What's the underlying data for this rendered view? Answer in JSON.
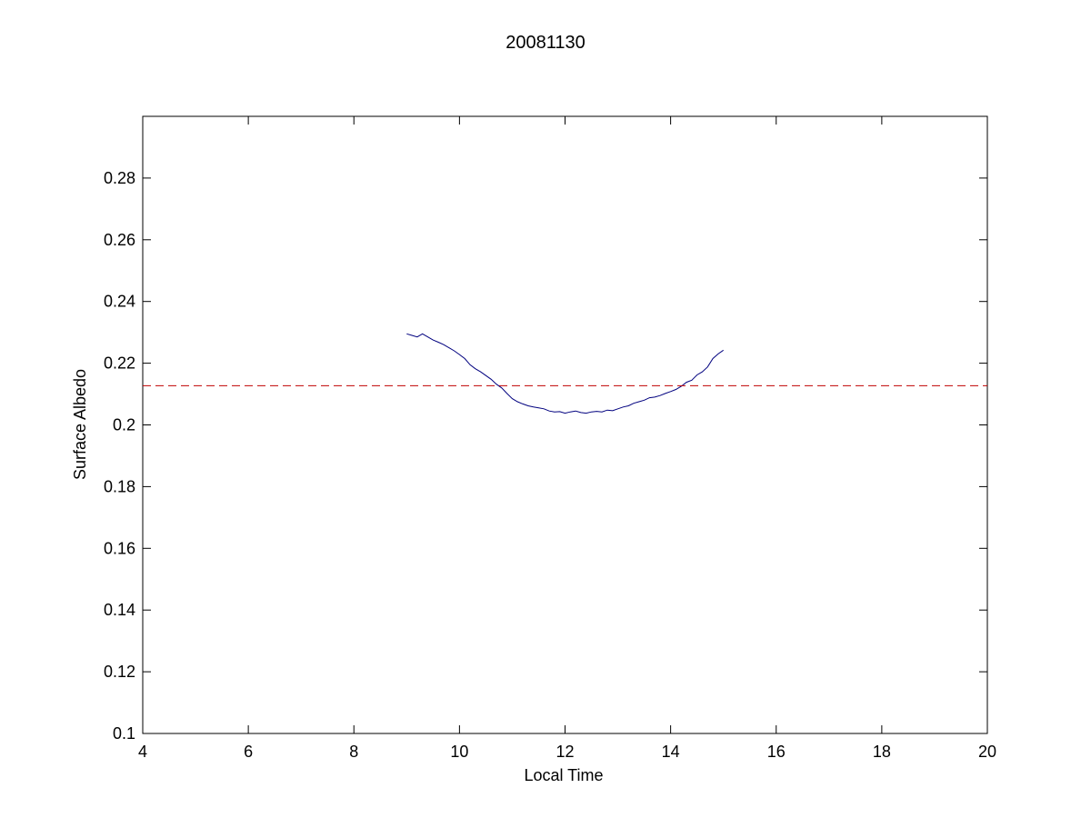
{
  "chart_data": {
    "type": "line",
    "title": "20081130",
    "xlabel": "Local Time",
    "ylabel": "Surface Albedo",
    "xlim": [
      4,
      20
    ],
    "ylim": [
      0.1,
      0.3
    ],
    "xticks": [
      4,
      6,
      8,
      10,
      12,
      14,
      16,
      18,
      20
    ],
    "yticks": [
      0.1,
      0.12,
      0.14,
      0.16,
      0.18,
      0.2,
      0.22,
      0.24,
      0.26,
      0.28
    ],
    "ytick_labels": [
      "0.1",
      "0.12",
      "0.14",
      "0.16",
      "0.18",
      "0.2",
      "0.22",
      "0.24",
      "0.26",
      "0.28"
    ],
    "grid": false,
    "series": [
      {
        "color": "#00007f",
        "style": "solid",
        "x": [
          9.0,
          9.1,
          9.2,
          9.3,
          9.4,
          9.5,
          9.6,
          9.7,
          9.8,
          9.9,
          10.0,
          10.1,
          10.2,
          10.3,
          10.4,
          10.5,
          10.6,
          10.7,
          10.8,
          10.9,
          11.0,
          11.1,
          11.2,
          11.3,
          11.4,
          11.5,
          11.6,
          11.7,
          11.8,
          11.9,
          12.0,
          12.1,
          12.2,
          12.3,
          12.4,
          12.5,
          12.6,
          12.7,
          12.8,
          12.9,
          13.0,
          13.1,
          13.2,
          13.3,
          13.4,
          13.5,
          13.6,
          13.7,
          13.8,
          13.9,
          14.0,
          14.1,
          14.2,
          14.3,
          14.4,
          14.5,
          14.6,
          14.7,
          14.8,
          14.9,
          15.0
        ],
        "y": [
          0.2295,
          0.229,
          0.2285,
          0.2295,
          0.2285,
          0.2275,
          0.2268,
          0.226,
          0.225,
          0.224,
          0.2228,
          0.2215,
          0.2195,
          0.2182,
          0.2172,
          0.216,
          0.2148,
          0.2132,
          0.212,
          0.2102,
          0.2085,
          0.2075,
          0.2068,
          0.2062,
          0.2058,
          0.2055,
          0.2052,
          0.2045,
          0.2042,
          0.2043,
          0.2038,
          0.2042,
          0.2045,
          0.204,
          0.2038,
          0.2042,
          0.2044,
          0.2042,
          0.2048,
          0.2046,
          0.2052,
          0.2058,
          0.2062,
          0.207,
          0.2075,
          0.208,
          0.2088,
          0.209,
          0.2095,
          0.2102,
          0.2108,
          0.2115,
          0.2125,
          0.2138,
          0.2145,
          0.2162,
          0.2172,
          0.2188,
          0.2215,
          0.223,
          0.2242
        ]
      },
      {
        "color": "#c00000",
        "style": "dashed",
        "x": [
          4,
          20
        ],
        "y": [
          0.2127,
          0.2127
        ]
      }
    ]
  }
}
